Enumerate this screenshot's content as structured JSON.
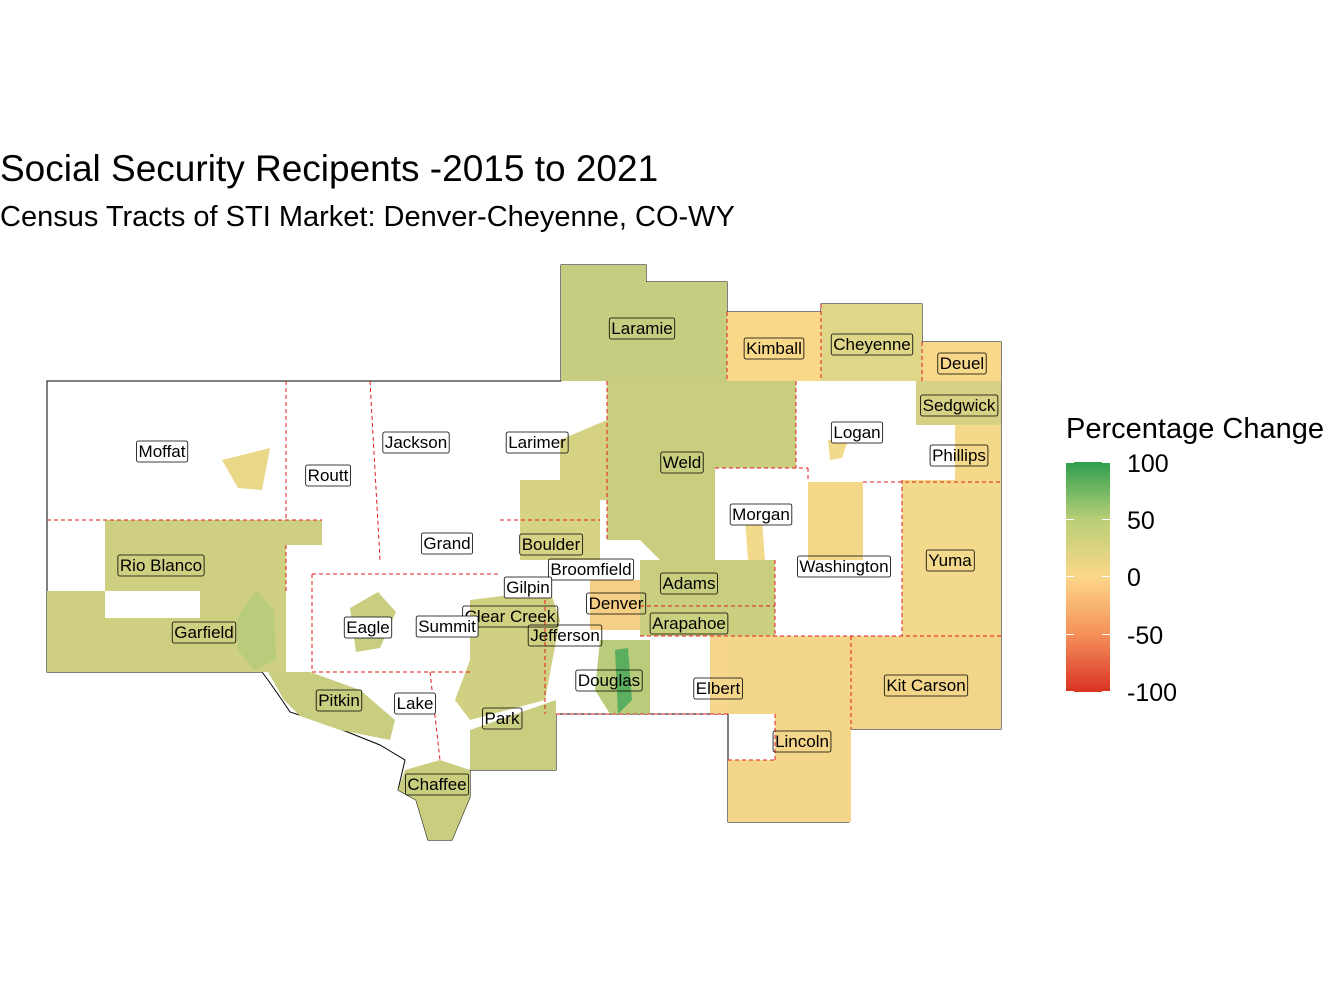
{
  "title": "Social Security Recipents -2015 to 2021",
  "subtitle": "Census Tracts of STI Market: Denver-Cheyenne, CO-WY",
  "legend": {
    "title": "Percentage Change",
    "ticks": [
      "100",
      "50",
      "0",
      "-50",
      "-100"
    ],
    "colors": {
      "high": "#2e9e4e",
      "mid_high": "#b9cf77",
      "zero": "#fcd789",
      "mid_low": "#f5905a",
      "low": "#d93224"
    }
  },
  "counties": [
    {
      "name": "Laramie",
      "value": 40
    },
    {
      "name": "Kimball",
      "value": 12
    },
    {
      "name": "Cheyenne",
      "value": 30
    },
    {
      "name": "Deuel",
      "value": 10
    },
    {
      "name": "Sedgwick",
      "value": 20
    },
    {
      "name": "Logan",
      "value": null
    },
    {
      "name": "Phillips",
      "value": 10
    },
    {
      "name": "Moffat",
      "value": null
    },
    {
      "name": "Jackson",
      "value": null
    },
    {
      "name": "Larimer",
      "value": 20
    },
    {
      "name": "Routt",
      "value": null
    },
    {
      "name": "Weld",
      "value": 35
    },
    {
      "name": "Morgan",
      "value": null
    },
    {
      "name": "Grand",
      "value": null
    },
    {
      "name": "Boulder",
      "value": 25
    },
    {
      "name": "Rio Blanco",
      "value": 30
    },
    {
      "name": "Broomfield",
      "value": 10
    },
    {
      "name": "Adams",
      "value": 35
    },
    {
      "name": "Washington",
      "value": 15
    },
    {
      "name": "Yuma",
      "value": 10
    },
    {
      "name": "Gilpin",
      "value": null
    },
    {
      "name": "Denver",
      "value": 0
    },
    {
      "name": "Clear Creek",
      "value": 10
    },
    {
      "name": "Garfield",
      "value": 30
    },
    {
      "name": "Eagle",
      "value": null
    },
    {
      "name": "Summit",
      "value": null
    },
    {
      "name": "Jefferson",
      "value": 20
    },
    {
      "name": "Arapahoe",
      "value": 35
    },
    {
      "name": "Douglas",
      "value": 40
    },
    {
      "name": "Elbert",
      "value": 12
    },
    {
      "name": "Kit Carson",
      "value": 10
    },
    {
      "name": "Pitkin",
      "value": 30
    },
    {
      "name": "Lake",
      "value": null
    },
    {
      "name": "Park",
      "value": 35
    },
    {
      "name": "Lincoln",
      "value": 12
    },
    {
      "name": "Chaffee",
      "value": 25
    }
  ]
}
